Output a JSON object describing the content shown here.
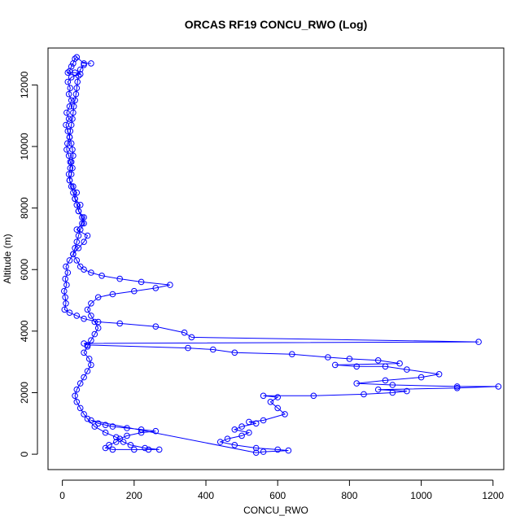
{
  "chart_data": {
    "type": "line",
    "title": "ORCAS RF19 CONCU_RWO (Log)",
    "xlabel": "CONCU_RWO",
    "ylabel": "Altitude (m)",
    "xlim": [
      -40,
      1230
    ],
    "ylim": [
      -500,
      13200
    ],
    "x_ticks": [
      0,
      200,
      400,
      600,
      800,
      1000,
      1200
    ],
    "y_ticks": [
      0,
      2000,
      4000,
      6000,
      8000,
      10000,
      12000
    ],
    "marker": "open-circle",
    "line_and_points": true,
    "color": "#0000ff",
    "grid": false,
    "series": [
      {
        "points": [
          [
            80,
            12700
          ],
          [
            60,
            12700
          ],
          [
            40,
            12900
          ],
          [
            35,
            12850
          ],
          [
            30,
            12700
          ],
          [
            25,
            12600
          ],
          [
            20,
            12450
          ],
          [
            15,
            12400
          ],
          [
            35,
            12400
          ],
          [
            50,
            12350
          ],
          [
            25,
            12250
          ],
          [
            15,
            12100
          ],
          [
            22,
            11900
          ],
          [
            18,
            11700
          ],
          [
            25,
            11500
          ],
          [
            20,
            11300
          ],
          [
            12,
            11100
          ],
          [
            18,
            10900
          ],
          [
            10,
            10700
          ],
          [
            15,
            10500
          ],
          [
            20,
            10300
          ],
          [
            14,
            10100
          ],
          [
            12,
            9900
          ],
          [
            18,
            9700
          ],
          [
            22,
            9500
          ],
          [
            28,
            9300
          ],
          [
            25,
            9100
          ],
          [
            20,
            8900
          ],
          [
            30,
            8700
          ],
          [
            40,
            8500
          ],
          [
            35,
            8300
          ],
          [
            50,
            8100
          ],
          [
            45,
            7900
          ],
          [
            60,
            7700
          ],
          [
            55,
            7500
          ],
          [
            40,
            7300
          ],
          [
            70,
            7100
          ],
          [
            60,
            6900
          ],
          [
            45,
            6700
          ],
          [
            30,
            6500
          ],
          [
            20,
            6300
          ],
          [
            10,
            6100
          ],
          [
            15,
            5900
          ],
          [
            8,
            5700
          ],
          [
            12,
            5500
          ],
          [
            5,
            5300
          ],
          [
            8,
            5100
          ],
          [
            10,
            4900
          ],
          [
            6,
            4700
          ],
          [
            20,
            4600
          ],
          [
            40,
            4500
          ],
          [
            60,
            4400
          ],
          [
            100,
            4300
          ],
          [
            160,
            4250
          ],
          [
            260,
            4150
          ],
          [
            340,
            3950
          ],
          [
            360,
            3800
          ],
          [
            1160,
            3650
          ],
          [
            60,
            3600
          ],
          [
            70,
            3550
          ],
          [
            350,
            3450
          ],
          [
            420,
            3400
          ],
          [
            480,
            3300
          ],
          [
            640,
            3250
          ],
          [
            740,
            3150
          ],
          [
            800,
            3100
          ],
          [
            880,
            3050
          ],
          [
            940,
            2950
          ],
          [
            760,
            2900
          ],
          [
            820,
            2850
          ],
          [
            900,
            2850
          ],
          [
            960,
            2750
          ],
          [
            1050,
            2600
          ],
          [
            1000,
            2500
          ],
          [
            900,
            2400
          ],
          [
            820,
            2300
          ],
          [
            920,
            2250
          ],
          [
            1100,
            2200
          ],
          [
            1215,
            2200
          ],
          [
            1100,
            2150
          ],
          [
            880,
            2100
          ],
          [
            960,
            2050
          ],
          [
            920,
            2000
          ],
          [
            840,
            1950
          ],
          [
            700,
            1900
          ],
          [
            560,
            1900
          ],
          [
            600,
            1850
          ],
          [
            580,
            1700
          ],
          [
            600,
            1500
          ],
          [
            620,
            1300
          ],
          [
            560,
            1100
          ],
          [
            520,
            1050
          ],
          [
            540,
            1000
          ],
          [
            500,
            900
          ],
          [
            480,
            800
          ],
          [
            520,
            700
          ],
          [
            500,
            600
          ],
          [
            460,
            500
          ],
          [
            440,
            400
          ],
          [
            480,
            300
          ],
          [
            540,
            200
          ],
          [
            600,
            150
          ],
          [
            630,
            120
          ],
          [
            560,
            80
          ],
          [
            540,
            50
          ],
          [
            80,
            1100
          ],
          [
            100,
            1000
          ],
          [
            120,
            950
          ],
          [
            140,
            900
          ],
          [
            180,
            850
          ],
          [
            220,
            800
          ],
          [
            260,
            750
          ],
          [
            220,
            700
          ],
          [
            180,
            600
          ],
          [
            160,
            500
          ],
          [
            150,
            400
          ],
          [
            130,
            300
          ],
          [
            120,
            200
          ],
          [
            140,
            150
          ],
          [
            200,
            150
          ],
          [
            240,
            150
          ],
          [
            270,
            150
          ],
          [
            230,
            200
          ],
          [
            190,
            300
          ],
          [
            170,
            400
          ],
          [
            150,
            550
          ],
          [
            120,
            700
          ],
          [
            90,
            900
          ],
          [
            70,
            1150
          ],
          [
            60,
            1300
          ],
          [
            50,
            1500
          ],
          [
            40,
            1700
          ],
          [
            35,
            1900
          ],
          [
            40,
            2100
          ],
          [
            50,
            2300
          ],
          [
            60,
            2500
          ],
          [
            70,
            2700
          ],
          [
            80,
            2900
          ],
          [
            75,
            3100
          ],
          [
            60,
            3300
          ],
          [
            70,
            3500
          ],
          [
            80,
            3700
          ],
          [
            90,
            3900
          ],
          [
            100,
            4100
          ],
          [
            90,
            4300
          ],
          [
            80,
            4500
          ],
          [
            70,
            4700
          ],
          [
            80,
            4900
          ],
          [
            100,
            5100
          ],
          [
            140,
            5200
          ],
          [
            200,
            5300
          ],
          [
            260,
            5400
          ],
          [
            300,
            5500
          ],
          [
            220,
            5600
          ],
          [
            160,
            5700
          ],
          [
            110,
            5800
          ],
          [
            80,
            5900
          ],
          [
            60,
            6000
          ],
          [
            50,
            6100
          ],
          [
            40,
            6300
          ],
          [
            30,
            6500
          ],
          [
            35,
            6700
          ],
          [
            40,
            6900
          ],
          [
            45,
            7100
          ],
          [
            50,
            7300
          ],
          [
            60,
            7500
          ],
          [
            55,
            7700
          ],
          [
            45,
            7900
          ],
          [
            40,
            8100
          ],
          [
            35,
            8300
          ],
          [
            30,
            8500
          ],
          [
            25,
            8700
          ],
          [
            20,
            8900
          ],
          [
            18,
            9100
          ],
          [
            22,
            9300
          ],
          [
            25,
            9500
          ],
          [
            30,
            9700
          ],
          [
            28,
            9900
          ],
          [
            25,
            10100
          ],
          [
            20,
            10300
          ],
          [
            22,
            10500
          ],
          [
            25,
            10700
          ],
          [
            28,
            10900
          ],
          [
            30,
            11100
          ],
          [
            32,
            11300
          ],
          [
            35,
            11500
          ],
          [
            38,
            11700
          ],
          [
            40,
            11900
          ],
          [
            42,
            12100
          ],
          [
            45,
            12300
          ],
          [
            50,
            12500
          ],
          [
            60,
            12650
          ]
        ]
      }
    ]
  }
}
